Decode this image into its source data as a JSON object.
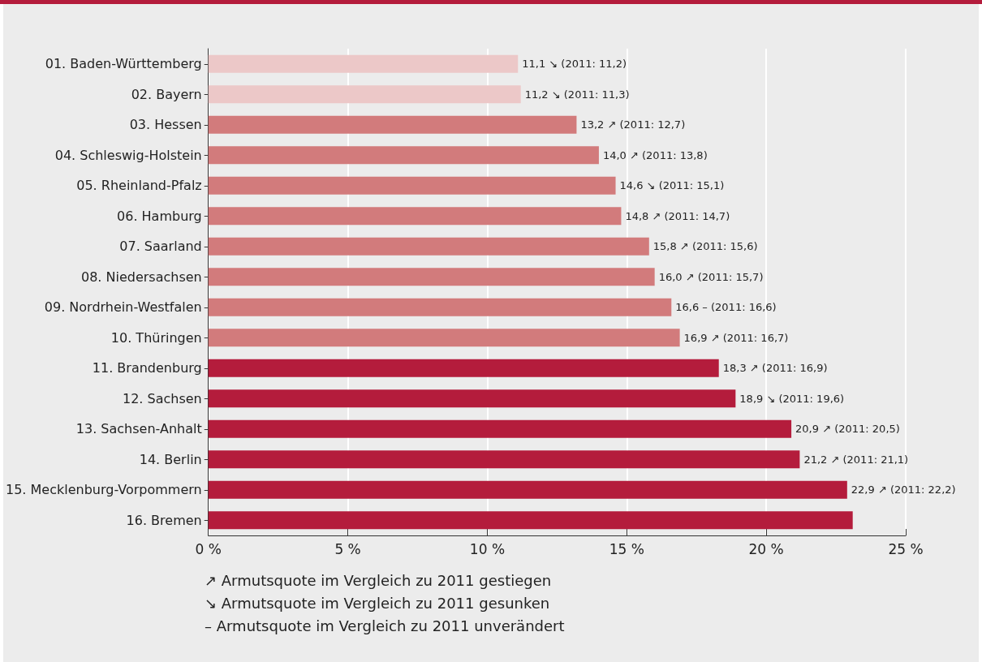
{
  "chart_data": {
    "type": "bar",
    "orientation": "horizontal",
    "categories": [
      "01. Baden-Württemberg",
      "02. Bayern",
      "03. Hessen",
      "04. Schleswig-Holstein",
      "05. Rheinland-Pfalz",
      "06. Hamburg",
      "07. Saarland",
      "08. Niedersachsen",
      "09. Nordrhein-Westfalen",
      "10. Thüringen",
      "11. Brandenburg",
      "12. Sachsen",
      "13. Sachsen-Anhalt",
      "14. Berlin",
      "15. Mecklenburg-Vorpommern",
      "16. Bremen"
    ],
    "values": [
      11.1,
      11.2,
      13.2,
      14.0,
      14.6,
      14.8,
      15.8,
      16.0,
      16.6,
      16.9,
      18.3,
      18.9,
      20.9,
      21.2,
      22.9,
      23.1
    ],
    "colors": [
      "#ecc8c8",
      "#ecc8c8",
      "#d27b7c",
      "#d27b7c",
      "#d27b7c",
      "#d27b7c",
      "#d27b7c",
      "#d27b7c",
      "#d27b7c",
      "#d27b7c",
      "#b41c3c",
      "#b41c3c",
      "#b41c3c",
      "#b41c3c",
      "#b41c3c",
      "#b41c3c"
    ],
    "value_labels": [
      "11,1 ↘ (2011: 11,2)",
      "11,2 ↘ (2011: 11,3)",
      "13,2 ↗ (2011: 12,7)",
      "14,0 ↗ (2011: 13,8)",
      "14,6 ↘ (2011: 15,1)",
      "14,8 ↗ (2011: 14,7)",
      "15,8 ↗ (2011: 15,6)",
      "16,0 ↗ (2011: 15,7)",
      "16,6 – (2011: 16,6)",
      "16,9 ↗ (2011: 16,7)",
      "18,3 ↗ (2011: 16,9)",
      "18,9 ↘ (2011: 19,6)",
      "20,9 ↗ (2011: 20,5)",
      "21,2 ↗ (2011: 21,1)",
      "22,9 ↗ (2011: 22,2)",
      null
    ],
    "xlim": [
      0,
      25
    ],
    "xticks": [
      {
        "value": 0,
        "label": "0 %"
      },
      {
        "value": 5,
        "label": "5 %"
      },
      {
        "value": 10,
        "label": "10 %"
      },
      {
        "value": 15,
        "label": "15 %"
      },
      {
        "value": 20,
        "label": "20 %"
      },
      {
        "value": 25,
        "label": "25 %"
      }
    ],
    "grid": "x",
    "annotations": [
      "↗ Armutsquote im Vergleich zu 2011 gestiegen",
      "↘ Armutsquote im Vergleich zu 2011 gesunken",
      "– Armutsquote im Vergleich zu 2011 unverändert"
    ]
  }
}
